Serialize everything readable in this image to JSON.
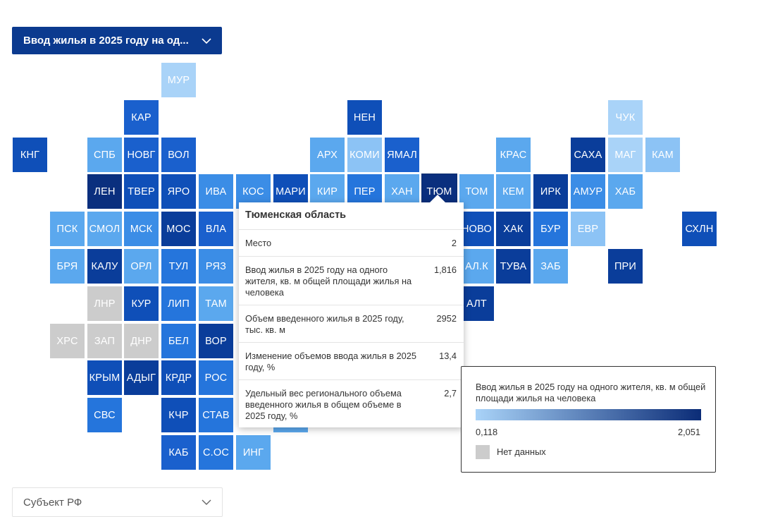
{
  "metric_select": {
    "label": "Ввод жилья в 2025 году на од...",
    "icon": "chevron-down-icon"
  },
  "colors": {
    "c1": "#a9d3f8",
    "c2": "#8cc3f5",
    "c3": "#5ba8ee",
    "c4": "#3b8de6",
    "c5": "#2575dc",
    "c6": "#1a60cd",
    "c7": "#0f4fb8",
    "c8": "#0a3d9a",
    "c9": "#0a2f7e",
    "nd": "#cccccc"
  },
  "map": {
    "regions": [
      {
        "label": "МУР",
        "c": "c1"
      },
      {
        "label": "КАР",
        "c": "c6"
      },
      {
        "label": "НЕН",
        "c": "c7"
      },
      {
        "label": "ЧУК",
        "c": "c1"
      },
      {
        "label": "КНГ",
        "c": "c7"
      },
      {
        "label": "СПБ",
        "c": "c3"
      },
      {
        "label": "НОВГ",
        "c": "c6"
      },
      {
        "label": "ВОЛ",
        "c": "c6"
      },
      {
        "label": "АРХ",
        "c": "c3"
      },
      {
        "label": "КОМИ",
        "c": "c2"
      },
      {
        "label": "ЯМАЛ",
        "c": "c6"
      },
      {
        "label": "КРАС",
        "c": "c3"
      },
      {
        "label": "САХА",
        "c": "c8"
      },
      {
        "label": "МАГ",
        "c": "c1"
      },
      {
        "label": "КАМ",
        "c": "c2"
      },
      {
        "label": "ЛЕН",
        "c": "c9"
      },
      {
        "label": "ТВЕР",
        "c": "c7"
      },
      {
        "label": "ЯРО",
        "c": "c7"
      },
      {
        "label": "ИВА",
        "c": "c4"
      },
      {
        "label": "КОС",
        "c": "c4"
      },
      {
        "label": "МАРИ",
        "c": "c7"
      },
      {
        "label": "КИР",
        "c": "c3"
      },
      {
        "label": "ПЕР",
        "c": "c5"
      },
      {
        "label": "ХАН",
        "c": "c3"
      },
      {
        "label": "ТЮМ",
        "c": "c9"
      },
      {
        "label": "ТОМ",
        "c": "c3"
      },
      {
        "label": "КЕМ",
        "c": "c3"
      },
      {
        "label": "ИРК",
        "c": "c8"
      },
      {
        "label": "АМУР",
        "c": "c4"
      },
      {
        "label": "ХАБ",
        "c": "c3"
      },
      {
        "label": "ПСК",
        "c": "c3"
      },
      {
        "label": "СМОЛ",
        "c": "c3"
      },
      {
        "label": "МСК",
        "c": "c4"
      },
      {
        "label": "МОС",
        "c": "c8"
      },
      {
        "label": "ВЛА",
        "c": "c6"
      },
      {
        "label": "НОВО",
        "c": "c7"
      },
      {
        "label": "ХАК",
        "c": "c8"
      },
      {
        "label": "БУР",
        "c": "c5"
      },
      {
        "label": "ЕВР",
        "c": "c2"
      },
      {
        "label": "СХЛН",
        "c": "c7"
      },
      {
        "label": "БРЯ",
        "c": "c3"
      },
      {
        "label": "КАЛУ",
        "c": "c8"
      },
      {
        "label": "ОРЛ",
        "c": "c3"
      },
      {
        "label": "ТУЛ",
        "c": "c5"
      },
      {
        "label": "РЯЗ",
        "c": "c4"
      },
      {
        "label": "АЛ.К",
        "c": "c3"
      },
      {
        "label": "ТУВА",
        "c": "c8"
      },
      {
        "label": "ЗАБ",
        "c": "c3"
      },
      {
        "label": "ПРИ",
        "c": "c8"
      },
      {
        "label": "ЛНР",
        "c": "nd"
      },
      {
        "label": "КУР",
        "c": "c7"
      },
      {
        "label": "ЛИП",
        "c": "c5"
      },
      {
        "label": "ТАМ",
        "c": "c3"
      },
      {
        "label": "АЛТ",
        "c": "c8"
      },
      {
        "label": "ХРС",
        "c": "nd"
      },
      {
        "label": "ЗАП",
        "c": "nd"
      },
      {
        "label": "ДНР",
        "c": "nd"
      },
      {
        "label": "БЕЛ",
        "c": "c5"
      },
      {
        "label": "ВОР",
        "c": "c8"
      },
      {
        "label": "КРЫМ",
        "c": "c7"
      },
      {
        "label": "АДЫГ",
        "c": "c8"
      },
      {
        "label": "КРДР",
        "c": "c7"
      },
      {
        "label": "РОС",
        "c": "c5"
      },
      {
        "label": "СВС",
        "c": "c5"
      },
      {
        "label": "КЧР",
        "c": "c7"
      },
      {
        "label": "СТАВ",
        "c": "c5"
      },
      {
        "label": "КАБ",
        "c": "c6"
      },
      {
        "label": "С.ОС",
        "c": "c5"
      },
      {
        "label": "ИНГ",
        "c": "c3"
      }
    ],
    "hidden_partial": [
      {
        "label": "",
        "c": "c3"
      }
    ]
  },
  "tooltip": {
    "title": "Тюменская область",
    "rows": [
      {
        "k": "Место",
        "v": "2"
      },
      {
        "k": "Ввод жилья в 2025 году на одного жителя, кв. м общей площади жилья на человека",
        "v": "1,816"
      },
      {
        "k": "Объем введенного жилья в 2025 году, тыс. кв. м",
        "v": "2952"
      },
      {
        "k": "Изменение объемов ввода жилья в 2025 году, %",
        "v": "13,4"
      },
      {
        "k": "Удельный вес регионального объема введенного жилья в общем объеме в 2025 году, %",
        "v": "2,7"
      }
    ]
  },
  "legend": {
    "title": "Ввод жилья в 2025 году на одного жителя, кв. м общей площади жилья на человека",
    "min": "0,118",
    "max": "2,051",
    "no_data": "Нет данных"
  },
  "subject_select": {
    "label": "Субъект РФ",
    "icon": "chevron-down-icon"
  }
}
